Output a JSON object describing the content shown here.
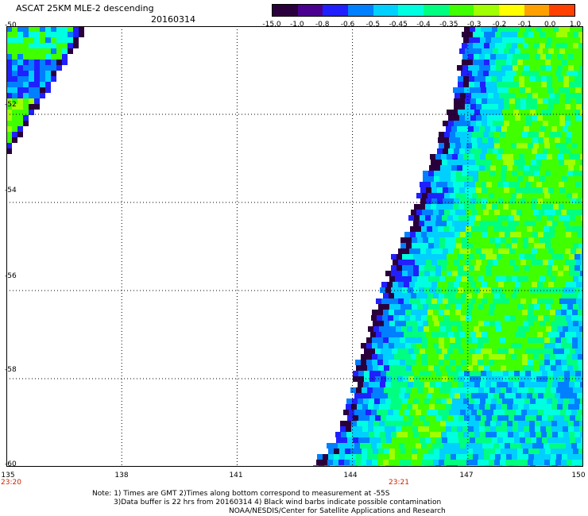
{
  "header": {
    "title": "ASCAT 25KM MLE-2 descending",
    "date": "20160314"
  },
  "colorbar": {
    "labels": [
      "-15.0",
      "-1.0",
      "-0.8",
      "-0.6",
      "-0.5",
      "-0.45",
      "-0.4",
      "-0.35",
      "-0.3",
      "-0.2",
      "-0.1",
      "0.0",
      "1.0"
    ],
    "colors": [
      "#2a003c",
      "#4a0090",
      "#2020ff",
      "#0080ff",
      "#00d0ff",
      "#00ffe0",
      "#00ff80",
      "#40ff00",
      "#a0ff00",
      "#ffff00",
      "#ffa000",
      "#ff4000"
    ]
  },
  "map": {
    "lat_labels": [
      "-50",
      "-52",
      "-54",
      "-56",
      "-58",
      "-60"
    ],
    "lon_labels": [
      "135",
      "138",
      "141",
      "144",
      "147",
      "150"
    ],
    "time_labels": [
      "23:20",
      "23:21"
    ],
    "lon_range": [
      135,
      150
    ],
    "lat_range": [
      -60,
      -50
    ],
    "grid_lons": [
      138,
      141,
      144,
      147
    ],
    "grid_lats": [
      -52,
      -54,
      -56,
      -58
    ]
  },
  "notes": {
    "line1": "Note: 1) Times are GMT 2)Times along bottom correspond to measurement at -55S",
    "line2": "3)Data buffer is 22 hrs from 20160314 4) Black wind barbs indicate possible contamination",
    "line3": "NOAA/NESDIS/Center for Satellite Applications and Research"
  }
}
